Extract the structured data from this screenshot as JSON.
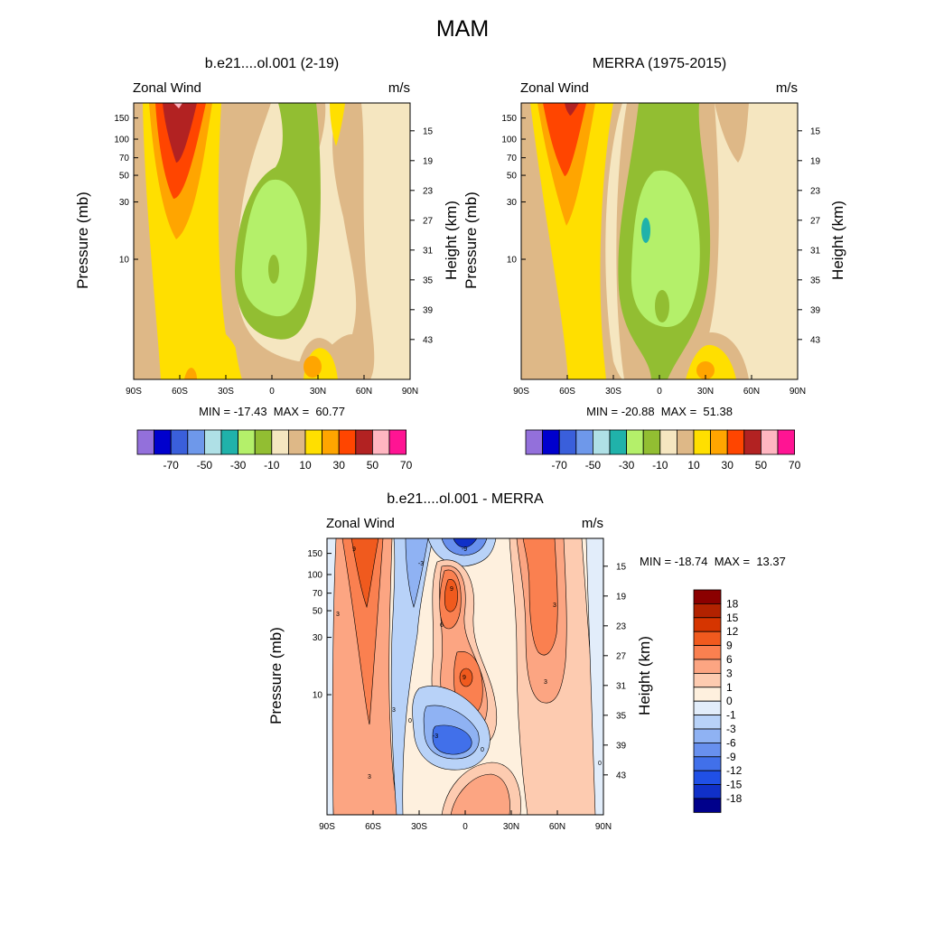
{
  "page": {
    "title": "MAM"
  },
  "chart_data": [
    {
      "type": "heatmap",
      "title": "b.e21....ol.001 (2-19)",
      "left_label": "Zonal Wind",
      "right_label": "m/s",
      "xlabel": "",
      "ylabel": "Pressure (mb)",
      "ylabel_right": "Height (km)",
      "x_ticks": [
        "90S",
        "60S",
        "30S",
        "0",
        "30N",
        "60N",
        "90N"
      ],
      "x_values": [
        -90,
        -60,
        -30,
        0,
        30,
        60,
        90
      ],
      "y_ticks": [
        "10",
        "30",
        "50",
        "70",
        "100",
        "150"
      ],
      "y_tick_values": [
        10,
        30,
        50,
        70,
        100,
        150
      ],
      "y_ticks_right": [
        "43",
        "39",
        "35",
        "31",
        "27",
        "23",
        "19",
        "15"
      ],
      "y_right_values": [
        43,
        39,
        35,
        31,
        27,
        23,
        19,
        15
      ],
      "ylim": [
        200,
        1
      ],
      "y_scale": "log",
      "min_label": "MIN = -17.43  MAX =  60.77",
      "colorbar_labels": [
        "-70",
        "-50",
        "-30",
        "-10",
        "10",
        "30",
        "50",
        "70"
      ],
      "colorbar_colors": [
        "#9370DB",
        "#0000CD",
        "#3A5FDB",
        "#6E98EA",
        "#AFE0E6",
        "#20B2AA",
        "#B4F06A",
        "#92BE32",
        "#F5E6C0",
        "#DEB887",
        "#FFDF00",
        "#FFA500",
        "#FF4500",
        "#B22222",
        "#FFB6C1",
        "#FF1493"
      ],
      "colorbar_orientation": "horizontal",
      "contour_levels": [
        -70,
        -60,
        -50,
        -40,
        -30,
        -20,
        -10,
        0,
        10,
        20,
        30,
        40,
        50,
        60,
        70
      ]
    },
    {
      "type": "heatmap",
      "title": "MERRA (1975-2015)",
      "left_label": "Zonal Wind",
      "right_label": "m/s",
      "xlabel": "",
      "ylabel": "Pressure (mb)",
      "ylabel_right": "Height (km)",
      "x_ticks": [
        "90S",
        "60S",
        "30S",
        "0",
        "30N",
        "60N",
        "90N"
      ],
      "x_values": [
        -90,
        -60,
        -30,
        0,
        30,
        60,
        90
      ],
      "y_ticks": [
        "10",
        "30",
        "50",
        "70",
        "100",
        "150"
      ],
      "y_tick_values": [
        10,
        30,
        50,
        70,
        100,
        150
      ],
      "y_ticks_right": [
        "43",
        "39",
        "35",
        "31",
        "27",
        "23",
        "19",
        "15"
      ],
      "y_right_values": [
        43,
        39,
        35,
        31,
        27,
        23,
        19,
        15
      ],
      "ylim": [
        200,
        1
      ],
      "y_scale": "log",
      "min_label": "MIN = -20.88  MAX =  51.38",
      "colorbar_labels": [
        "-70",
        "-50",
        "-30",
        "-10",
        "10",
        "30",
        "50",
        "70"
      ],
      "colorbar_colors": [
        "#9370DB",
        "#0000CD",
        "#3A5FDB",
        "#6E98EA",
        "#AFE0E6",
        "#20B2AA",
        "#B4F06A",
        "#92BE32",
        "#F5E6C0",
        "#DEB887",
        "#FFDF00",
        "#FFA500",
        "#FF4500",
        "#B22222",
        "#FFB6C1",
        "#FF1493"
      ],
      "colorbar_orientation": "horizontal",
      "contour_levels": [
        -70,
        -60,
        -50,
        -40,
        -30,
        -20,
        -10,
        0,
        10,
        20,
        30,
        40,
        50,
        60,
        70
      ]
    },
    {
      "type": "heatmap",
      "title": "b.e21....ol.001 - MERRA",
      "left_label": "Zonal Wind",
      "right_label": "m/s",
      "xlabel": "",
      "ylabel": "Pressure (mb)",
      "ylabel_right": "Height (km)",
      "x_ticks": [
        "90S",
        "60S",
        "30S",
        "0",
        "30N",
        "60N",
        "90N"
      ],
      "x_values": [
        -90,
        -60,
        -30,
        0,
        30,
        60,
        90
      ],
      "y_ticks": [
        "10",
        "30",
        "50",
        "70",
        "100",
        "150"
      ],
      "y_tick_values": [
        10,
        30,
        50,
        70,
        100,
        150
      ],
      "y_ticks_right": [
        "43",
        "39",
        "35",
        "31",
        "27",
        "23",
        "19",
        "15"
      ],
      "y_right_values": [
        43,
        39,
        35,
        31,
        27,
        23,
        19,
        15
      ],
      "ylim": [
        200,
        1
      ],
      "y_scale": "log",
      "min_label": "MIN = -18.74  MAX =  13.37",
      "colorbar_labels": [
        "18",
        "15",
        "12",
        "9",
        "6",
        "3",
        "1",
        "0",
        "-1",
        "-3",
        "-6",
        "-9",
        "-12",
        "-15",
        "-18"
      ],
      "colorbar_colors": [
        "#8B0000",
        "#B22200",
        "#D63500",
        "#F05A1E",
        "#FA8050",
        "#FCA582",
        "#FDCBB0",
        "#FEF0DE",
        "#E2EDFA",
        "#B8D2F8",
        "#8FB2F3",
        "#6890EE",
        "#4170EA",
        "#2050E6",
        "#1030C8",
        "#00008B"
      ],
      "colorbar_orientation": "vertical",
      "contour_labels": [
        "9",
        "6",
        "3",
        "0",
        "-3",
        "-6",
        "-9"
      ]
    }
  ]
}
